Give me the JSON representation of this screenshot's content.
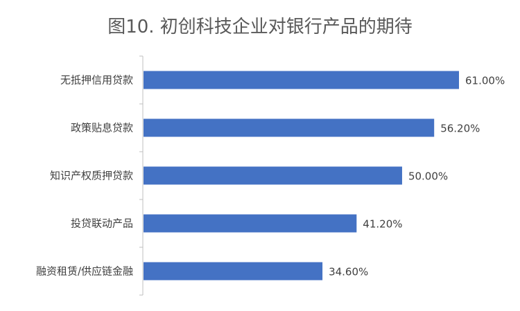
{
  "chart_data": {
    "type": "bar",
    "orientation": "horizontal",
    "title": "图10. 初创科技企业对银行产品的期待",
    "categories": [
      "无抵押信用贷款",
      "政策贴息贷款",
      "知识产权质押贷款",
      "投贷联动产品",
      "融资租赁/供应链金融"
    ],
    "values": [
      61.0,
      56.2,
      50.0,
      41.2,
      34.6
    ],
    "value_labels": [
      "61.00%",
      "56.20%",
      "50.00%",
      "41.20%",
      "34.60%"
    ],
    "unit": "%",
    "xlim": [
      0,
      70
    ],
    "grid": false,
    "legend": "none",
    "bar_color": "#4472C4"
  }
}
